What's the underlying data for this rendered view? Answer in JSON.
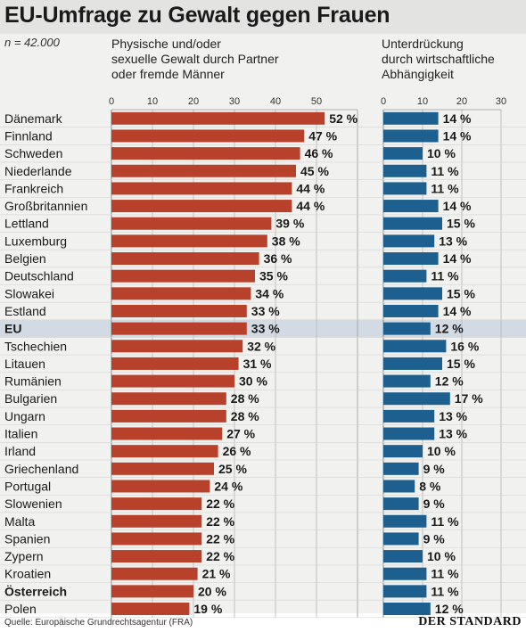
{
  "title": "EU-Umfrage zu Gewalt gegen Frauen",
  "note": "n = 42.000",
  "source": "Quelle: Europäische Grundrechtsagentur (FRA)",
  "logo": "DER STANDARD",
  "colors": {
    "left_bars": "#b8412b",
    "right_bars": "#1d5f8e",
    "highlight_row": "#d2dbe4",
    "background": "#f1f1ef"
  },
  "chart_data": [
    {
      "type": "bar",
      "title": "Physische und/oder sexuelle Gewalt durch Partner oder fremde Männer",
      "title_lines": [
        "Physische und/oder",
        "sexuelle Gewalt durch Partner",
        "oder fremde Männer"
      ],
      "orientation": "horizontal",
      "xlim": [
        0,
        60
      ],
      "ticks": [
        0,
        10,
        20,
        30,
        40,
        50
      ],
      "value_suffix": " %",
      "categories": [
        "Dänemark",
        "Finnland",
        "Schweden",
        "Niederlande",
        "Frankreich",
        "Großbritannien",
        "Lettland",
        "Luxemburg",
        "Belgien",
        "Deutschland",
        "Slowakei",
        "Estland",
        "EU",
        "Tschechien",
        "Litauen",
        "Rumänien",
        "Bulgarien",
        "Ungarn",
        "Italien",
        "Irland",
        "Griechenland",
        "Portugal",
        "Slowenien",
        "Malta",
        "Spanien",
        "Zypern",
        "Kroatien",
        "Österreich",
        "Polen"
      ],
      "values": [
        52,
        47,
        46,
        45,
        44,
        44,
        39,
        38,
        36,
        35,
        34,
        33,
        33,
        32,
        31,
        30,
        28,
        28,
        27,
        26,
        25,
        24,
        22,
        22,
        22,
        22,
        21,
        20,
        19
      ],
      "bold_categories": [
        "EU",
        "Österreich"
      ],
      "highlighted_category": "EU"
    },
    {
      "type": "bar",
      "title": "Unterdrückung durch wirtschaftliche Abhängigkeit",
      "title_lines": [
        "Unterdrückung",
        "durch wirtschaftliche",
        "Abhängigkeit"
      ],
      "orientation": "horizontal",
      "xlim": [
        0,
        30
      ],
      "ticks": [
        0,
        10,
        20,
        30
      ],
      "value_suffix": " %",
      "categories": [
        "Dänemark",
        "Finnland",
        "Schweden",
        "Niederlande",
        "Frankreich",
        "Großbritannien",
        "Lettland",
        "Luxemburg",
        "Belgien",
        "Deutschland",
        "Slowakei",
        "Estland",
        "EU",
        "Tschechien",
        "Litauen",
        "Rumänien",
        "Bulgarien",
        "Ungarn",
        "Italien",
        "Irland",
        "Griechenland",
        "Portugal",
        "Slowenien",
        "Malta",
        "Spanien",
        "Zypern",
        "Kroatien",
        "Österreich",
        "Polen"
      ],
      "values": [
        14,
        14,
        10,
        11,
        11,
        14,
        15,
        13,
        14,
        11,
        15,
        14,
        12,
        16,
        15,
        12,
        17,
        13,
        13,
        10,
        9,
        8,
        9,
        11,
        9,
        10,
        11,
        11,
        12
      ]
    }
  ]
}
